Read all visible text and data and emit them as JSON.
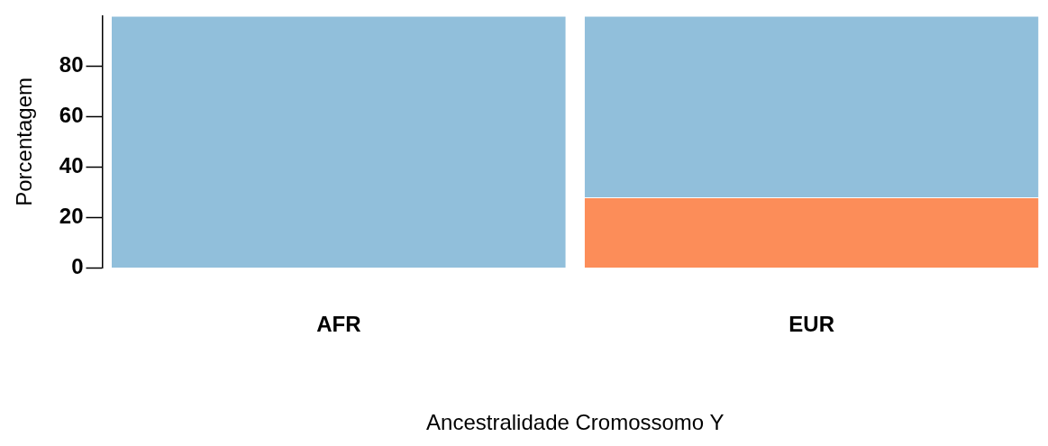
{
  "chart_data": {
    "type": "bar",
    "stacked": true,
    "xlabel": "Ancestralidade Cromossomo Y",
    "ylabel": "Porcentagem",
    "categories": [
      "AFR",
      "EUR"
    ],
    "series": [
      {
        "color": "#fc8d59",
        "values": [
          0,
          28
        ]
      },
      {
        "color": "#91bfdb",
        "values": [
          100,
          72
        ]
      }
    ],
    "ylim": [
      0,
      100
    ],
    "yticks": [
      0,
      20,
      40,
      60,
      80
    ],
    "grid": false,
    "legend": false
  }
}
